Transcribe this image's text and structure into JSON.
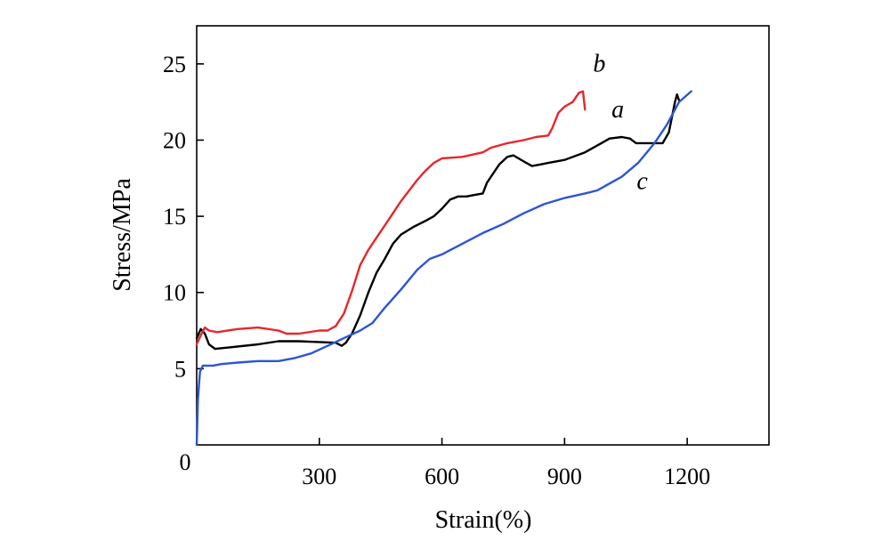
{
  "chart_data": {
    "type": "line",
    "title": "",
    "xlabel": "Strain(%)",
    "ylabel": "Stress/MPa",
    "xlim": [
      0,
      1400
    ],
    "ylim": [
      0,
      27.5
    ],
    "xticks": [
      300,
      600,
      900,
      1200
    ],
    "xtick_labels": [
      "300",
      "600",
      "900",
      "1200"
    ],
    "yticks": [
      5,
      10,
      15,
      20,
      25
    ],
    "ytick_labels": [
      "5",
      "10",
      "15",
      "20",
      "25"
    ],
    "origin_label": "0",
    "grid": false,
    "legend": "none (inline curve labels)",
    "series": [
      {
        "name": "a",
        "color": "#000000",
        "label_at": [
          1030,
          21.5
        ],
        "points": [
          [
            0,
            7.0
          ],
          [
            10,
            7.6
          ],
          [
            20,
            7.3
          ],
          [
            30,
            6.6
          ],
          [
            45,
            6.3
          ],
          [
            80,
            6.4
          ],
          [
            150,
            6.6
          ],
          [
            200,
            6.8
          ],
          [
            250,
            6.8
          ],
          [
            300,
            6.75
          ],
          [
            340,
            6.7
          ],
          [
            355,
            6.5
          ],
          [
            365,
            6.7
          ],
          [
            380,
            7.3
          ],
          [
            400,
            8.5
          ],
          [
            420,
            10.0
          ],
          [
            440,
            11.3
          ],
          [
            460,
            12.2
          ],
          [
            480,
            13.2
          ],
          [
            500,
            13.8
          ],
          [
            530,
            14.3
          ],
          [
            560,
            14.7
          ],
          [
            580,
            15.0
          ],
          [
            600,
            15.5
          ],
          [
            620,
            16.1
          ],
          [
            640,
            16.3
          ],
          [
            660,
            16.3
          ],
          [
            680,
            16.4
          ],
          [
            700,
            16.5
          ],
          [
            710,
            17.2
          ],
          [
            720,
            17.6
          ],
          [
            740,
            18.4
          ],
          [
            760,
            18.9
          ],
          [
            775,
            19.0
          ],
          [
            800,
            18.6
          ],
          [
            820,
            18.3
          ],
          [
            840,
            18.4
          ],
          [
            860,
            18.5
          ],
          [
            900,
            18.7
          ],
          [
            950,
            19.2
          ],
          [
            990,
            19.8
          ],
          [
            1010,
            20.1
          ],
          [
            1040,
            20.2
          ],
          [
            1060,
            20.1
          ],
          [
            1075,
            19.8
          ],
          [
            1100,
            19.8
          ],
          [
            1140,
            19.8
          ],
          [
            1155,
            20.5
          ],
          [
            1170,
            22.5
          ],
          [
            1175,
            23.0
          ],
          [
            1180,
            22.6
          ]
        ]
      },
      {
        "name": "b",
        "color": "#e8262b",
        "label_at": [
          985,
          24.5
        ],
        "points": [
          [
            0,
            6.6
          ],
          [
            10,
            7.2
          ],
          [
            20,
            7.7
          ],
          [
            30,
            7.5
          ],
          [
            50,
            7.4
          ],
          [
            100,
            7.6
          ],
          [
            150,
            7.7
          ],
          [
            200,
            7.5
          ],
          [
            220,
            7.3
          ],
          [
            250,
            7.3
          ],
          [
            300,
            7.5
          ],
          [
            320,
            7.5
          ],
          [
            340,
            7.8
          ],
          [
            360,
            8.6
          ],
          [
            380,
            10.1
          ],
          [
            400,
            11.8
          ],
          [
            420,
            12.8
          ],
          [
            440,
            13.6
          ],
          [
            460,
            14.4
          ],
          [
            480,
            15.2
          ],
          [
            500,
            16.0
          ],
          [
            520,
            16.7
          ],
          [
            540,
            17.4
          ],
          [
            560,
            18.0
          ],
          [
            580,
            18.5
          ],
          [
            600,
            18.8
          ],
          [
            650,
            18.9
          ],
          [
            700,
            19.2
          ],
          [
            720,
            19.5
          ],
          [
            760,
            19.8
          ],
          [
            800,
            20.0
          ],
          [
            830,
            20.2
          ],
          [
            860,
            20.3
          ],
          [
            870,
            20.8
          ],
          [
            885,
            21.8
          ],
          [
            900,
            22.2
          ],
          [
            920,
            22.5
          ],
          [
            935,
            23.1
          ],
          [
            945,
            23.2
          ],
          [
            950,
            22.0
          ]
        ]
      },
      {
        "name": "c",
        "color": "#2b55d6",
        "label_at": [
          1090,
          16.8
        ],
        "points": [
          [
            0,
            0.0
          ],
          [
            3,
            3.0
          ],
          [
            8,
            4.8
          ],
          [
            15,
            5.2
          ],
          [
            40,
            5.2
          ],
          [
            60,
            5.3
          ],
          [
            100,
            5.4
          ],
          [
            150,
            5.5
          ],
          [
            200,
            5.5
          ],
          [
            240,
            5.7
          ],
          [
            280,
            6.0
          ],
          [
            320,
            6.5
          ],
          [
            360,
            7.0
          ],
          [
            400,
            7.5
          ],
          [
            430,
            8.0
          ],
          [
            460,
            9.0
          ],
          [
            500,
            10.2
          ],
          [
            540,
            11.5
          ],
          [
            570,
            12.2
          ],
          [
            600,
            12.5
          ],
          [
            650,
            13.2
          ],
          [
            700,
            13.9
          ],
          [
            750,
            14.5
          ],
          [
            800,
            15.2
          ],
          [
            850,
            15.8
          ],
          [
            900,
            16.2
          ],
          [
            950,
            16.5
          ],
          [
            980,
            16.7
          ],
          [
            1000,
            17.0
          ],
          [
            1040,
            17.6
          ],
          [
            1080,
            18.5
          ],
          [
            1120,
            19.8
          ],
          [
            1150,
            21.0
          ],
          [
            1180,
            22.5
          ],
          [
            1210,
            23.2
          ]
        ]
      }
    ]
  }
}
